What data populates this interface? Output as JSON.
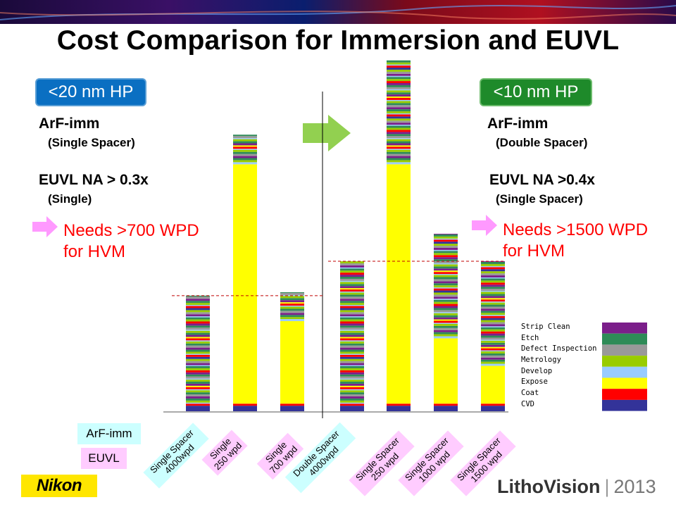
{
  "title": "Cost Comparison for Immersion and EUVL",
  "left_panel": {
    "hp_label": "<20 nm HP",
    "arf_label": "ArF-imm",
    "arf_sub": "(Single Spacer)",
    "euvl_label": "EUVL NA > 0.3x",
    "euvl_sub": "(Single)",
    "needs_line1": "Needs >700 WPD",
    "needs_line2": "for HVM"
  },
  "right_panel": {
    "hp_label": "<10 nm HP",
    "arf_label": "ArF-imm",
    "arf_sub": "(Double Spacer)",
    "euvl_label": "EUVL NA >0.4x",
    "euvl_sub": "(Single Spacer)",
    "needs_line1": "Needs >1500 WPD",
    "needs_line2": "for HVM"
  },
  "key": {
    "arf": "ArF-imm",
    "euvl": "EUVL"
  },
  "logos": {
    "nikon": "Nikon",
    "litho_name": "LithoVision",
    "litho_year": "2013"
  },
  "colors": {
    "strip_clean": "#7b1e8a",
    "etch": "#2e8b57",
    "defect_inspection": "#999999",
    "metrology": "#99cc00",
    "develop": "#99ccff",
    "expose": "#ffff00",
    "coat": "#ff0000",
    "cvd": "#333399",
    "arf_box": "#ccffff",
    "euvl_box": "#ffccff",
    "hp_left": "#0a6fc2",
    "hp_right": "#1e8a2a"
  },
  "chart_data": {
    "type": "bar",
    "stacked": true,
    "categories": [
      "Single Spacer 4000wpd",
      "Single 250 wpd",
      "Single 700 wpd",
      "Double Spacer 4000wpd",
      "Single Spacer 250 wpd",
      "Single Spacer 1000 wpd",
      "Single Spacer 1500 wpd"
    ],
    "category_lines": [
      [
        "Single Spacer",
        "4000wpd"
      ],
      [
        "Single",
        "250 wpd"
      ],
      [
        "Single",
        "700 wpd"
      ],
      [
        "Double Spacer",
        "4000wpd"
      ],
      [
        "Single Spacer",
        "250 wpd"
      ],
      [
        "Single Spacer",
        "1000 wpd"
      ],
      [
        "Single Spacer",
        "1500 wpd"
      ]
    ],
    "category_group": [
      "arf",
      "euv",
      "euv",
      "arf",
      "euv",
      "euv",
      "euv"
    ],
    "legend": [
      "Strip Clean",
      "Etch",
      "Defect Inspection",
      "Metrology",
      "Develop",
      "Expose",
      "Coat",
      "CVD"
    ],
    "legend_keys": [
      "strip_clean",
      "etch",
      "defect_inspection",
      "metrology",
      "develop",
      "expose",
      "coat",
      "cvd"
    ],
    "totals": [
      168,
      402,
      173,
      218,
      510,
      258,
      218
    ],
    "expose_values": [
      0,
      348,
      120,
      0,
      348,
      95,
      55
    ],
    "reference_lines": [
      168,
      218
    ],
    "ylim": [
      0,
      520
    ],
    "grid": false,
    "legend_position": "bottom-right"
  }
}
